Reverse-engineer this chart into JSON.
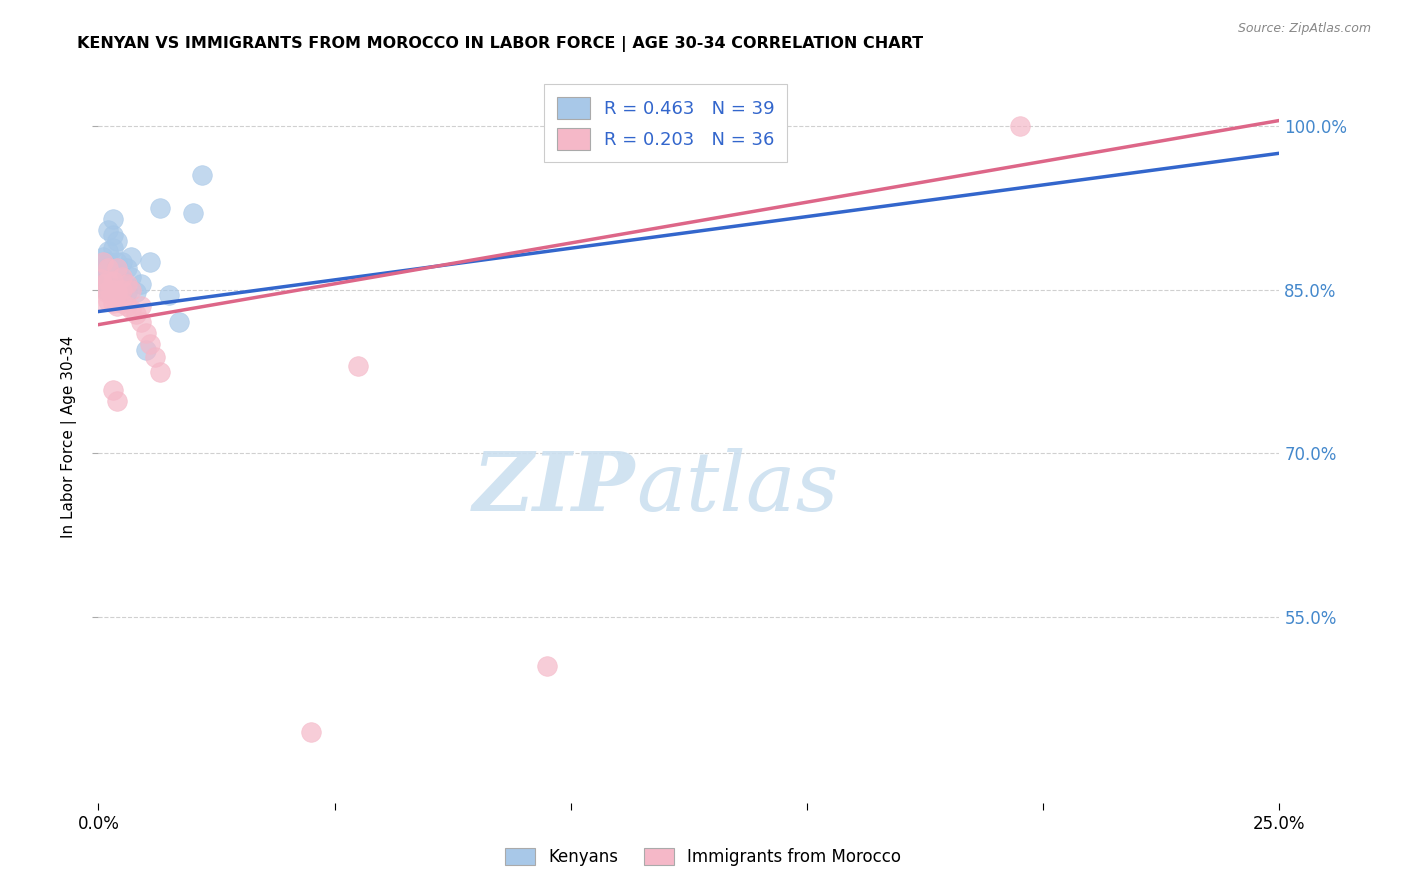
{
  "title": "KENYAN VS IMMIGRANTS FROM MOROCCO IN LABOR FORCE | AGE 30-34 CORRELATION CHART",
  "source": "Source: ZipAtlas.com",
  "ylabel": "In Labor Force | Age 30-34",
  "ylabel_right_ticks": [
    1.0,
    0.85,
    0.7,
    0.55
  ],
  "ylabel_right_labels": [
    "100.0%",
    "85.0%",
    "70.0%",
    "55.0%"
  ],
  "xmin": 0.0,
  "xmax": 0.25,
  "ymin": 0.38,
  "ymax": 1.05,
  "blue_R": 0.463,
  "blue_N": 39,
  "pink_R": 0.203,
  "pink_N": 36,
  "legend_label_blue": "Kenyans",
  "legend_label_pink": "Immigrants from Morocco",
  "blue_color": "#a8c8e8",
  "pink_color": "#f5b8c8",
  "blue_line_color": "#3366cc",
  "pink_line_color": "#dd6688",
  "blue_line_x0": 0.0,
  "blue_line_y0": 0.83,
  "blue_line_x1": 0.25,
  "blue_line_y1": 0.975,
  "pink_line_x0": 0.0,
  "pink_line_y0": 0.818,
  "pink_line_x1": 0.25,
  "pink_line_y1": 1.005,
  "blue_scatter_x": [
    0.0005,
    0.0007,
    0.001,
    0.001,
    0.001,
    0.0015,
    0.0015,
    0.002,
    0.002,
    0.002,
    0.002,
    0.0025,
    0.003,
    0.003,
    0.003,
    0.003,
    0.003,
    0.0035,
    0.004,
    0.004,
    0.004,
    0.004,
    0.0045,
    0.005,
    0.005,
    0.005,
    0.006,
    0.006,
    0.007,
    0.007,
    0.008,
    0.009,
    0.01,
    0.011,
    0.013,
    0.015,
    0.017,
    0.02,
    0.022
  ],
  "blue_scatter_y": [
    0.865,
    0.87,
    0.855,
    0.875,
    0.88,
    0.85,
    0.87,
    0.858,
    0.875,
    0.885,
    0.905,
    0.87,
    0.86,
    0.872,
    0.888,
    0.9,
    0.915,
    0.87,
    0.855,
    0.865,
    0.875,
    0.895,
    0.862,
    0.848,
    0.86,
    0.875,
    0.848,
    0.87,
    0.862,
    0.88,
    0.848,
    0.855,
    0.795,
    0.875,
    0.925,
    0.845,
    0.82,
    0.92,
    0.955
  ],
  "pink_scatter_x": [
    0.0005,
    0.001,
    0.001,
    0.001,
    0.0015,
    0.002,
    0.002,
    0.002,
    0.0025,
    0.003,
    0.003,
    0.003,
    0.0035,
    0.004,
    0.004,
    0.004,
    0.005,
    0.005,
    0.005,
    0.006,
    0.006,
    0.007,
    0.007,
    0.008,
    0.009,
    0.009,
    0.01,
    0.011,
    0.012,
    0.013,
    0.003,
    0.004,
    0.195,
    0.055,
    0.095,
    0.045
  ],
  "pink_scatter_y": [
    0.86,
    0.84,
    0.855,
    0.875,
    0.848,
    0.84,
    0.858,
    0.87,
    0.848,
    0.838,
    0.85,
    0.858,
    0.843,
    0.835,
    0.848,
    0.87,
    0.838,
    0.85,
    0.862,
    0.835,
    0.855,
    0.832,
    0.85,
    0.828,
    0.82,
    0.835,
    0.81,
    0.8,
    0.788,
    0.775,
    0.758,
    0.748,
    1.0,
    0.78,
    0.505,
    0.445
  ],
  "watermark_ZIP": "ZIP",
  "watermark_atlas": "atlas",
  "background_color": "#ffffff",
  "grid_color": "#d0d0d0"
}
